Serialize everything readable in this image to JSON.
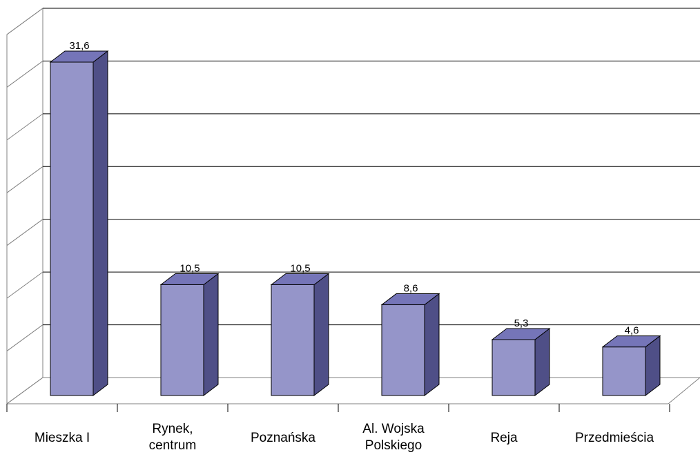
{
  "chart_data": {
    "type": "bar",
    "title": "",
    "xlabel": "",
    "ylabel": "",
    "categories": [
      [
        "Mieszka I"
      ],
      [
        "Rynek,",
        "centrum"
      ],
      [
        "Poznańska"
      ],
      [
        "Al. Wojska",
        "Polskiego"
      ],
      [
        "Reja"
      ],
      [
        "Przedmieścia"
      ]
    ],
    "values": [
      31.6,
      10.5,
      10.5,
      8.6,
      5.3,
      4.6
    ],
    "value_labels": [
      "31,6",
      "10,5",
      "10,5",
      "8,6",
      "5,3",
      "4,6"
    ],
    "ylim": [
      0,
      35
    ],
    "gridlines": [
      0,
      5,
      10,
      15,
      20,
      25,
      30,
      35
    ],
    "grid": true,
    "three_d": true,
    "legend": "none",
    "colors": {
      "bar_front": "#9595c9",
      "bar_side": "#4f4f87",
      "bar_top": "#7575b8",
      "grid": "#000000",
      "wall": "#ffffff"
    }
  }
}
